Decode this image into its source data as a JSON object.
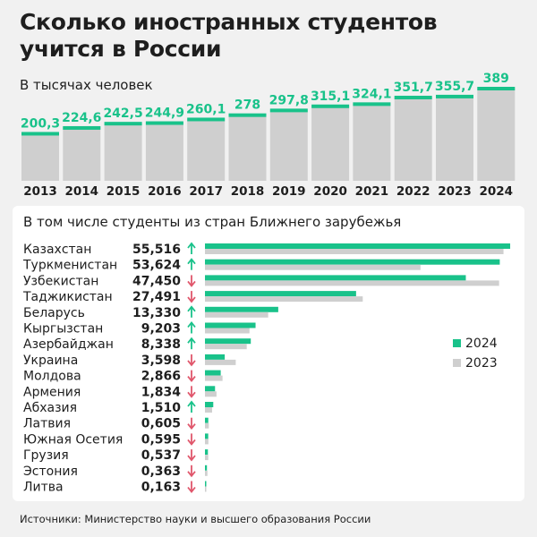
{
  "header": {
    "title_line1": "Сколько иностранных студентов",
    "title_line2": "учится в России",
    "subtitle": "В тысячах человек"
  },
  "colors": {
    "accent": "#19c28a",
    "gray": "#cfcfcf",
    "up": "#19c28a",
    "down": "#e0566b"
  },
  "chart_data": [
    {
      "type": "bar",
      "categories": [
        "2013",
        "2014",
        "2015",
        "2016",
        "2017",
        "2018",
        "2019",
        "2020",
        "2021",
        "2022",
        "2023",
        "2024"
      ],
      "values": [
        200.3,
        224.6,
        242.5,
        244.9,
        260.1,
        278,
        297.8,
        315.1,
        324.1,
        351.7,
        355.7,
        389
      ],
      "value_labels": [
        "200,3",
        "224,6",
        "242,5",
        "244,9",
        "260,1",
        "278",
        "297,8",
        "315,1",
        "324,1",
        "351,7",
        "355,7",
        "389"
      ],
      "title": "Сколько иностранных студентов учится в России",
      "subtitle": "В тысячах человек",
      "xlabel": "",
      "ylabel": ""
    },
    {
      "type": "bar",
      "orientation": "horizontal",
      "title": "В том числе студенты из стран Ближнего зарубежья",
      "categories": [
        "Казахстан",
        "Туркменистан",
        "Узбекистан",
        "Таджикистан",
        "Беларусь",
        "Кыргызстан",
        "Азербайджан",
        "Украина",
        "Молдова",
        "Армения",
        "Абхазия",
        "Латвия",
        "Южная Осетия",
        "Грузия",
        "Эстония",
        "Литва"
      ],
      "value_labels": [
        "55,516",
        "53,624",
        "47,450",
        "27,491",
        "13,330",
        "9,203",
        "8,338",
        "3,598",
        "2,866",
        "1,834",
        "1,510",
        "0,605",
        "0,595",
        "0,537",
        "0,363",
        "0,163"
      ],
      "trend": [
        "up",
        "up",
        "down",
        "down",
        "up",
        "up",
        "up",
        "down",
        "down",
        "down",
        "up",
        "down",
        "down",
        "down",
        "down",
        "down"
      ],
      "series": [
        {
          "name": "2024",
          "values": [
            55.516,
            53.624,
            47.45,
            27.491,
            13.33,
            9.203,
            8.338,
            3.598,
            2.866,
            1.834,
            1.51,
            0.605,
            0.595,
            0.537,
            0.363,
            0.163
          ]
        },
        {
          "name": "2023",
          "values": [
            54.3,
            39.2,
            53.5,
            28.7,
            11.5,
            8.1,
            7.6,
            5.6,
            3.2,
            2.1,
            1.3,
            0.7,
            0.62,
            0.6,
            0.45,
            0.2
          ]
        }
      ],
      "legend": [
        "2024",
        "2023"
      ],
      "legend_position": "right"
    }
  ],
  "footer": {
    "source": "Источники: Министерство науки и высшего образования России"
  }
}
